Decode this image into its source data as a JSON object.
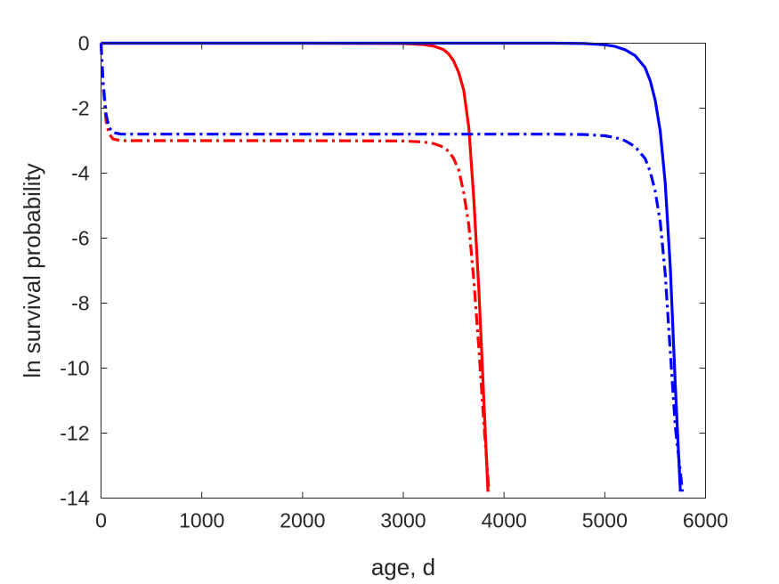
{
  "chart_data": {
    "type": "line",
    "title": "",
    "xlabel": "age, d",
    "ylabel": "ln survival probability",
    "xlim": [
      0,
      6000
    ],
    "ylim": [
      -14,
      0
    ],
    "xticks": [
      0,
      1000,
      2000,
      3000,
      4000,
      5000,
      6000
    ],
    "yticks": [
      0,
      -2,
      -4,
      -6,
      -8,
      -10,
      -12,
      -14
    ],
    "xtick_labels": [
      "0",
      "1000",
      "2000",
      "3000",
      "4000",
      "5000",
      "6000"
    ],
    "ytick_labels": [
      "0",
      "-2",
      "-4",
      "-6",
      "-8",
      "-10",
      "-12",
      "-14"
    ],
    "grid": false,
    "legend": "none",
    "series": [
      {
        "color": "#ff0000",
        "style": "solid",
        "x": [
          0,
          1000,
          2000,
          3000,
          3200,
          3300,
          3400,
          3450,
          3500,
          3550,
          3600,
          3650,
          3700,
          3750,
          3800,
          3840
        ],
        "y": [
          0,
          0,
          0,
          -0.01,
          -0.04,
          -0.09,
          -0.2,
          -0.33,
          -0.55,
          -0.9,
          -1.45,
          -2.6,
          -4.8,
          -7.6,
          -11.0,
          -13.8
        ]
      },
      {
        "color": "#0000ff",
        "style": "solid",
        "x": [
          0,
          1000,
          2000,
          3000,
          4000,
          4500,
          4800,
          5000,
          5100,
          5200,
          5300,
          5400,
          5450,
          5500,
          5550,
          5600,
          5650,
          5700,
          5750
        ],
        "y": [
          0,
          0,
          0,
          0,
          0,
          0,
          -0.01,
          -0.05,
          -0.1,
          -0.2,
          -0.38,
          -0.75,
          -1.15,
          -1.75,
          -2.7,
          -4.3,
          -6.9,
          -10.5,
          -13.8
        ]
      },
      {
        "color": "#ff0000",
        "style": "dashdot",
        "x": [
          0,
          20,
          50,
          80,
          120,
          200,
          500,
          1000,
          2000,
          3000,
          3200,
          3300,
          3400,
          3450,
          3500,
          3550,
          3600,
          3650,
          3700,
          3750,
          3800,
          3850
        ],
        "y": [
          0,
          -1.3,
          -2.4,
          -2.8,
          -2.95,
          -3.0,
          -3.0,
          -3.0,
          -3.0,
          -3.01,
          -3.04,
          -3.09,
          -3.2,
          -3.33,
          -3.55,
          -3.9,
          -4.6,
          -5.6,
          -7.3,
          -9.4,
          -11.7,
          -13.8
        ]
      },
      {
        "color": "#0000ff",
        "style": "dashdot",
        "x": [
          0,
          20,
          50,
          80,
          120,
          200,
          500,
          1000,
          2000,
          3000,
          4000,
          4500,
          4800,
          5000,
          5100,
          5200,
          5300,
          5400,
          5450,
          5500,
          5550,
          5600,
          5650,
          5700,
          5750,
          5770
        ],
        "y": [
          0,
          -1.2,
          -2.2,
          -2.6,
          -2.75,
          -2.8,
          -2.8,
          -2.8,
          -2.8,
          -2.8,
          -2.8,
          -2.8,
          -2.81,
          -2.85,
          -2.9,
          -3.0,
          -3.18,
          -3.55,
          -3.95,
          -4.55,
          -5.5,
          -7.1,
          -9.5,
          -11.8,
          -13.2,
          -13.8
        ]
      }
    ]
  }
}
